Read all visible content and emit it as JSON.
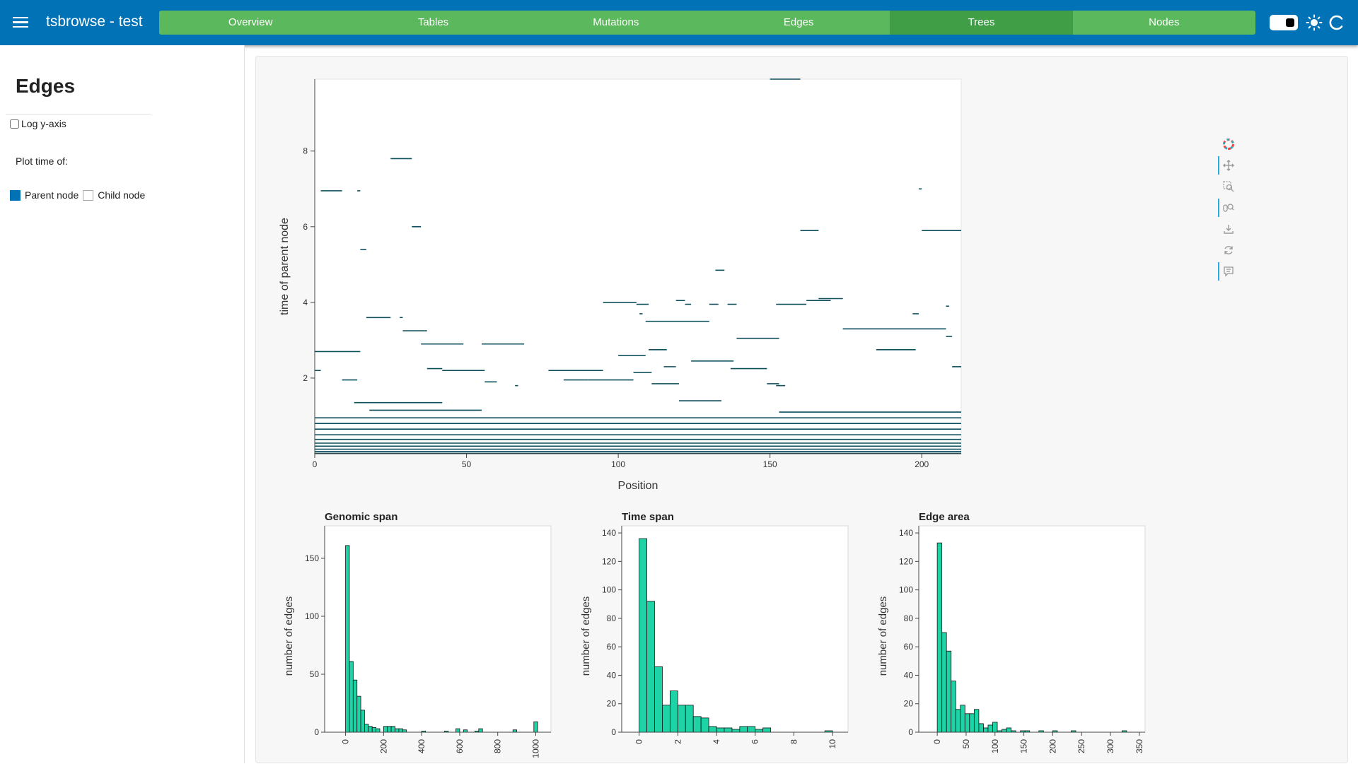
{
  "header": {
    "app_title": "tsbrowse  -  test",
    "tabs": [
      {
        "label": "Overview",
        "active": false
      },
      {
        "label": "Tables",
        "active": false
      },
      {
        "label": "Mutations",
        "active": false
      },
      {
        "label": "Edges",
        "active": false
      },
      {
        "label": "Trees",
        "active": true
      },
      {
        "label": "Nodes",
        "active": false
      }
    ],
    "icons": [
      "menu-icon",
      "theme-toggle",
      "sun-icon",
      "reload-icon"
    ],
    "colors": {
      "header": "#0072b5",
      "tabs": "#5cb85c",
      "active_tab": "#3f9e46"
    }
  },
  "sidebar": {
    "title": "Edges",
    "log_y_axis": {
      "label": "Log y-axis",
      "checked": false
    },
    "plot_time_label": "Plot time of:",
    "time_options": [
      {
        "label": "Parent node",
        "checked": true
      },
      {
        "label": "Child node",
        "checked": false
      }
    ]
  },
  "toolbar": {
    "tools": [
      "bokeh-logo-icon",
      "pan-icon",
      "box-zoom-icon",
      "wheel-zoom-icon",
      "save-icon",
      "reset-icon",
      "hover-icon"
    ],
    "active": [
      "pan-icon",
      "wheel-zoom-icon",
      "hover-icon"
    ]
  },
  "chart_data": [
    {
      "type": "segments",
      "xlabel": "Position",
      "ylabel": "time of parent node",
      "xlim": [
        0,
        213
      ],
      "ylim": [
        0,
        9.9
      ],
      "x_ticks": [
        0,
        50,
        100,
        150,
        200
      ],
      "y_ticks": [
        2,
        4,
        6,
        8
      ],
      "color": "#0d4f5c",
      "segments": [
        {
          "x0": 150,
          "x1": 160,
          "y": 9.9
        },
        {
          "x0": 25,
          "x1": 32,
          "y": 7.8
        },
        {
          "x0": 2,
          "x1": 9,
          "y": 6.95
        },
        {
          "x0": 14,
          "x1": 15,
          "y": 6.95
        },
        {
          "x0": 199,
          "x1": 200,
          "y": 7.0
        },
        {
          "x0": 32,
          "x1": 35,
          "y": 6.0
        },
        {
          "x0": 160,
          "x1": 166,
          "y": 5.9
        },
        {
          "x0": 200,
          "x1": 213,
          "y": 5.9
        },
        {
          "x0": 15,
          "x1": 17,
          "y": 5.4
        },
        {
          "x0": 132,
          "x1": 135,
          "y": 4.85
        },
        {
          "x0": 95,
          "x1": 106,
          "y": 4.0
        },
        {
          "x0": 106,
          "x1": 110,
          "y": 3.95
        },
        {
          "x0": 119,
          "x1": 122,
          "y": 4.05
        },
        {
          "x0": 122,
          "x1": 124,
          "y": 3.95
        },
        {
          "x0": 130,
          "x1": 133,
          "y": 3.95
        },
        {
          "x0": 136,
          "x1": 139,
          "y": 3.95
        },
        {
          "x0": 152,
          "x1": 162,
          "y": 3.95
        },
        {
          "x0": 162,
          "x1": 170,
          "y": 4.05
        },
        {
          "x0": 166,
          "x1": 174,
          "y": 4.1
        },
        {
          "x0": 208,
          "x1": 209,
          "y": 3.9
        },
        {
          "x0": 107,
          "x1": 108,
          "y": 3.7
        },
        {
          "x0": 197,
          "x1": 199,
          "y": 3.7
        },
        {
          "x0": 17,
          "x1": 25,
          "y": 3.6
        },
        {
          "x0": 28,
          "x1": 29,
          "y": 3.6
        },
        {
          "x0": 109,
          "x1": 130,
          "y": 3.5
        },
        {
          "x0": 29,
          "x1": 37,
          "y": 3.25
        },
        {
          "x0": 174,
          "x1": 208,
          "y": 3.3
        },
        {
          "x0": 208,
          "x1": 210,
          "y": 3.1
        },
        {
          "x0": 139,
          "x1": 153,
          "y": 3.05
        },
        {
          "x0": 35,
          "x1": 49,
          "y": 2.9
        },
        {
          "x0": 55,
          "x1": 69,
          "y": 2.9
        },
        {
          "x0": 0,
          "x1": 15,
          "y": 2.7
        },
        {
          "x0": 110,
          "x1": 116,
          "y": 2.75
        },
        {
          "x0": 185,
          "x1": 198,
          "y": 2.75
        },
        {
          "x0": 100,
          "x1": 109,
          "y": 2.6
        },
        {
          "x0": 124,
          "x1": 138,
          "y": 2.45
        },
        {
          "x0": 115,
          "x1": 119,
          "y": 2.3
        },
        {
          "x0": 137,
          "x1": 149,
          "y": 2.25
        },
        {
          "x0": 37,
          "x1": 42,
          "y": 2.25
        },
        {
          "x0": 42,
          "x1": 56,
          "y": 2.2
        },
        {
          "x0": 77,
          "x1": 95,
          "y": 2.2
        },
        {
          "x0": 105,
          "x1": 111,
          "y": 2.15
        },
        {
          "x0": 210,
          "x1": 213,
          "y": 2.3
        },
        {
          "x0": 0,
          "x1": 2,
          "y": 2.2
        },
        {
          "x0": 9,
          "x1": 14,
          "y": 1.95
        },
        {
          "x0": 56,
          "x1": 60,
          "y": 1.9
        },
        {
          "x0": 82,
          "x1": 90,
          "y": 1.95
        },
        {
          "x0": 90,
          "x1": 105,
          "y": 1.95
        },
        {
          "x0": 66,
          "x1": 67,
          "y": 1.8
        },
        {
          "x0": 111,
          "x1": 120,
          "y": 1.85
        },
        {
          "x0": 149,
          "x1": 153,
          "y": 1.85
        },
        {
          "x0": 152,
          "x1": 155,
          "y": 1.8
        },
        {
          "x0": 13,
          "x1": 42,
          "y": 1.35
        },
        {
          "x0": 120,
          "x1": 134,
          "y": 1.4
        },
        {
          "x0": 18,
          "x1": 55,
          "y": 1.15
        },
        {
          "x0": 153,
          "x1": 213,
          "y": 1.1
        },
        {
          "x0": 0,
          "x1": 213,
          "y": 0.95
        },
        {
          "x0": 0,
          "x1": 213,
          "y": 0.8
        },
        {
          "x0": 0,
          "x1": 213,
          "y": 0.65
        },
        {
          "x0": 0,
          "x1": 213,
          "y": 0.5
        },
        {
          "x0": 0,
          "x1": 213,
          "y": 0.38
        },
        {
          "x0": 0,
          "x1": 213,
          "y": 0.28
        },
        {
          "x0": 0,
          "x1": 213,
          "y": 0.2
        },
        {
          "x0": 0,
          "x1": 213,
          "y": 0.12
        },
        {
          "x0": 0,
          "x1": 213,
          "y": 0.06
        },
        {
          "x0": 0,
          "x1": 213,
          "y": 0.01
        }
      ]
    },
    {
      "type": "bar",
      "title": "Genomic span",
      "ylabel": "number of edges",
      "xlim": [
        -110,
        1080
      ],
      "ylim": [
        0,
        178
      ],
      "x_ticks": [
        0,
        200,
        400,
        600,
        800,
        1000
      ],
      "y_ticks": [
        0,
        50,
        100,
        150
      ],
      "bin_width": 20,
      "bins": [
        {
          "x": 0,
          "y": 161
        },
        {
          "x": 20,
          "y": 61
        },
        {
          "x": 40,
          "y": 45
        },
        {
          "x": 60,
          "y": 31
        },
        {
          "x": 80,
          "y": 19
        },
        {
          "x": 100,
          "y": 7
        },
        {
          "x": 120,
          "y": 5
        },
        {
          "x": 140,
          "y": 4
        },
        {
          "x": 160,
          "y": 3
        },
        {
          "x": 200,
          "y": 5
        },
        {
          "x": 220,
          "y": 5
        },
        {
          "x": 240,
          "y": 5
        },
        {
          "x": 260,
          "y": 3
        },
        {
          "x": 280,
          "y": 3
        },
        {
          "x": 300,
          "y": 2
        },
        {
          "x": 400,
          "y": 1
        },
        {
          "x": 520,
          "y": 1
        },
        {
          "x": 580,
          "y": 3
        },
        {
          "x": 620,
          "y": 2
        },
        {
          "x": 680,
          "y": 1
        },
        {
          "x": 700,
          "y": 3
        },
        {
          "x": 880,
          "y": 2
        },
        {
          "x": 990,
          "y": 9
        }
      ],
      "color": "#1ed3a6"
    },
    {
      "type": "bar",
      "title": "Time span",
      "ylabel": "number of edges",
      "xlim": [
        -0.9,
        10.8
      ],
      "ylim": [
        0,
        145
      ],
      "x_ticks": [
        0,
        2,
        4,
        6,
        8,
        10
      ],
      "y_ticks": [
        0,
        20,
        40,
        60,
        80,
        100,
        120,
        140
      ],
      "bin_width": 0.4,
      "bins": [
        {
          "x": 0,
          "y": 136
        },
        {
          "x": 0.4,
          "y": 92
        },
        {
          "x": 0.8,
          "y": 46
        },
        {
          "x": 1.2,
          "y": 19
        },
        {
          "x": 1.6,
          "y": 29
        },
        {
          "x": 2.0,
          "y": 19
        },
        {
          "x": 2.4,
          "y": 19
        },
        {
          "x": 2.8,
          "y": 11
        },
        {
          "x": 3.2,
          "y": 10
        },
        {
          "x": 3.6,
          "y": 4
        },
        {
          "x": 4.0,
          "y": 3
        },
        {
          "x": 4.4,
          "y": 3
        },
        {
          "x": 4.8,
          "y": 2
        },
        {
          "x": 5.2,
          "y": 4
        },
        {
          "x": 5.6,
          "y": 4
        },
        {
          "x": 6.0,
          "y": 2
        },
        {
          "x": 6.4,
          "y": 3
        },
        {
          "x": 9.6,
          "y": 1
        }
      ],
      "color": "#1ed3a6"
    },
    {
      "type": "bar",
      "title": "Edge area",
      "ylabel": "number of edges",
      "xlim": [
        -32,
        360
      ],
      "ylim": [
        0,
        145
      ],
      "x_ticks": [
        0,
        50,
        100,
        150,
        200,
        250,
        300,
        350
      ],
      "y_ticks": [
        0,
        20,
        40,
        60,
        80,
        100,
        120,
        140
      ],
      "bin_width": 8,
      "bins": [
        {
          "x": 0,
          "y": 133
        },
        {
          "x": 8,
          "y": 70
        },
        {
          "x": 16,
          "y": 57
        },
        {
          "x": 24,
          "y": 36
        },
        {
          "x": 32,
          "y": 16
        },
        {
          "x": 40,
          "y": 19
        },
        {
          "x": 48,
          "y": 13
        },
        {
          "x": 56,
          "y": 13
        },
        {
          "x": 64,
          "y": 16
        },
        {
          "x": 72,
          "y": 6
        },
        {
          "x": 80,
          "y": 3
        },
        {
          "x": 88,
          "y": 5
        },
        {
          "x": 96,
          "y": 7
        },
        {
          "x": 104,
          "y": 1
        },
        {
          "x": 112,
          "y": 2
        },
        {
          "x": 120,
          "y": 3
        },
        {
          "x": 128,
          "y": 1
        },
        {
          "x": 144,
          "y": 1
        },
        {
          "x": 152,
          "y": 1
        },
        {
          "x": 176,
          "y": 1
        },
        {
          "x": 200,
          "y": 1
        },
        {
          "x": 232,
          "y": 1
        },
        {
          "x": 320,
          "y": 1
        }
      ],
      "color": "#1ed3a6"
    }
  ]
}
